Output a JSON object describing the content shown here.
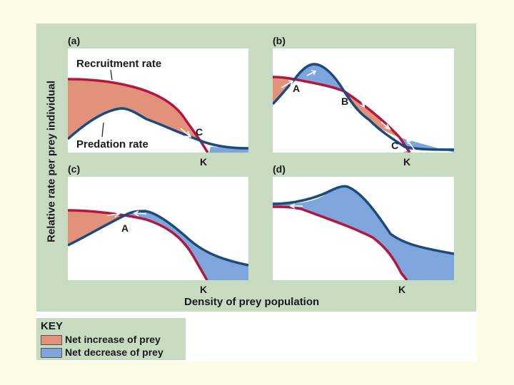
{
  "axis": {
    "y_label": "Relative rate per prey individual",
    "x_label": "Density of prey population"
  },
  "colors": {
    "background": "#fbfbe6",
    "figure_bg": "#c6dbc0",
    "recruitment_curve": "#b3163f",
    "predation_curve": "#1c4a7a",
    "net_increase": "#e2917a",
    "net_decrease": "#7ea6dc"
  },
  "panels": {
    "a": {
      "label": "(a)",
      "recruitment_label": "Recruitment rate",
      "predation_label": "Predation rate",
      "point_c": "C",
      "k": "K"
    },
    "b": {
      "label": "(b)",
      "point_a": "A",
      "point_b": "B",
      "point_c": "C",
      "k": "K"
    },
    "c": {
      "label": "(c)",
      "point_a": "A",
      "k": "K"
    },
    "d": {
      "label": "(d)",
      "k": "K"
    }
  },
  "key": {
    "title": "KEY",
    "items": [
      {
        "label": "Net increase of prey",
        "color": "#e2917a"
      },
      {
        "label": "Net decrease of prey",
        "color": "#7ea6dc"
      }
    ]
  }
}
